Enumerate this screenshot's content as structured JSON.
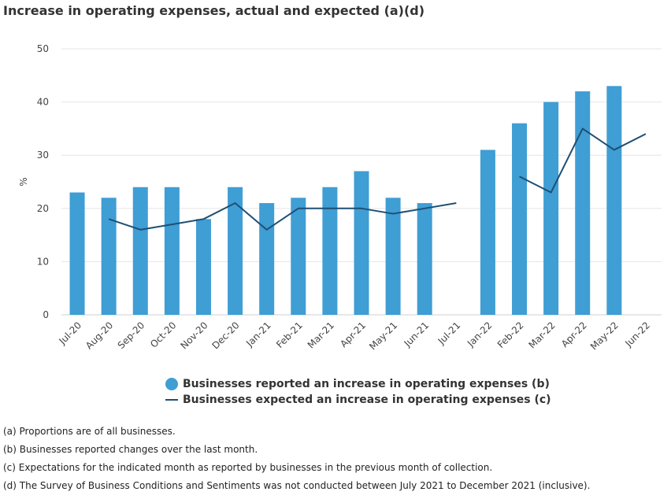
{
  "chart_data": {
    "type": "bar",
    "title": "Increase in operating expenses, actual and expected (a)(d)",
    "ylabel": "%",
    "xlabel": "",
    "ylim": [
      0,
      50
    ],
    "yticks": [
      0,
      10,
      20,
      30,
      40,
      50
    ],
    "grid": true,
    "categories": [
      "Jul-20",
      "Aug-20",
      "Sep-20",
      "Oct-20",
      "Nov-20",
      "Dec-20",
      "Jan-21",
      "Feb-21",
      "Mar-21",
      "Apr-21",
      "May-21",
      "Jun-21",
      "Jul-21",
      "Jan-22",
      "Feb-22",
      "Mar-22",
      "Apr-22",
      "May-22",
      "Jun-22"
    ],
    "series": [
      {
        "name": "Businesses reported an increase in operating expenses (b)",
        "type": "bar",
        "color": "#3F9ED4",
        "values": [
          23,
          22,
          24,
          24,
          18,
          24,
          21,
          22,
          24,
          27,
          22,
          21,
          null,
          31,
          36,
          40,
          42,
          43,
          null
        ]
      },
      {
        "name": "Businesses expected an increase in operating expenses (c)",
        "type": "line",
        "color": "#1E4F74",
        "values": [
          null,
          18,
          16,
          17,
          18,
          21,
          16,
          20,
          20,
          20,
          19,
          20,
          21,
          null,
          26,
          23,
          35,
          31,
          34
        ]
      }
    ],
    "legend": "bottom-center"
  },
  "footnotes": [
    "(a) Proportions are of all businesses.",
    "(b) Businesses reported changes over the last month.",
    "(c) Expectations for the indicated month as reported by businesses in the previous month of collection.",
    "(d) The Survey of Business Conditions and Sentiments was not conducted between July 2021 to December 2021 (inclusive)."
  ]
}
